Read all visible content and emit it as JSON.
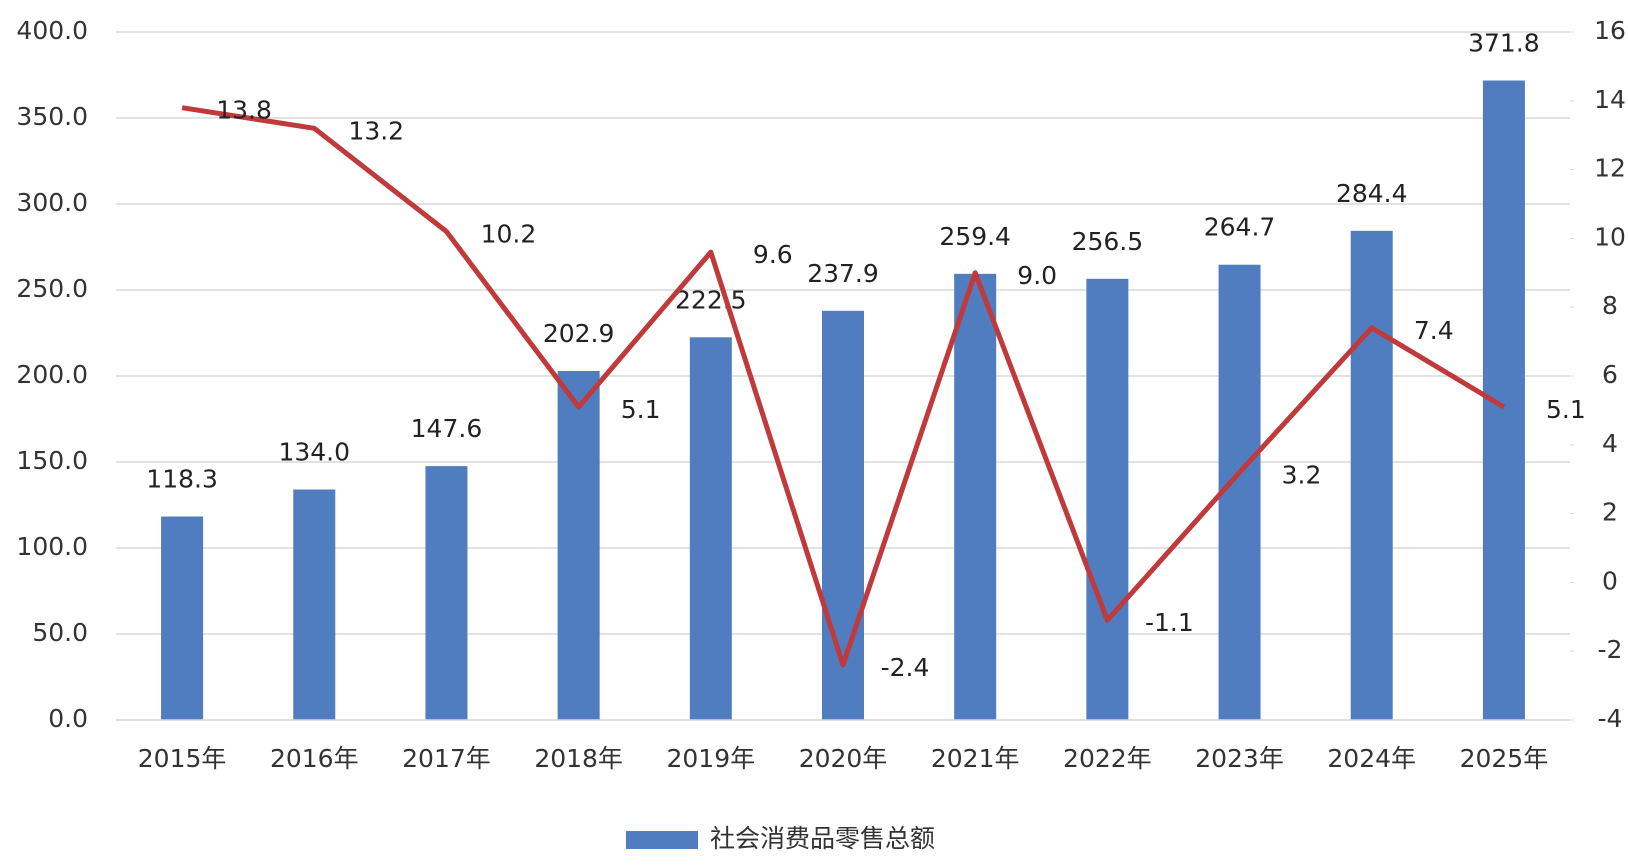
{
  "chart_data": {
    "type": "bar",
    "categories": [
      "2015年",
      "2016年",
      "2017年",
      "2018年",
      "2019年",
      "2020年",
      "2021年",
      "2022年",
      "2023年",
      "2024年",
      "2025年"
    ],
    "series": [
      {
        "name": "社会消费品零售总额",
        "type": "bar",
        "color": "#4f7dbf",
        "values": [
          118.3,
          134.0,
          147.6,
          202.9,
          222.5,
          237.9,
          259.4,
          256.5,
          264.7,
          284.4,
          371.8
        ],
        "value_labels": [
          "118.3",
          "134.0",
          "147.6",
          "202.9",
          "222.5",
          "237.9",
          "259.4",
          "256.5",
          "264.7",
          "284.4",
          "371.8"
        ]
      },
      {
        "type": "line",
        "axis": "y2",
        "color": "#c0393b",
        "values": [
          13.8,
          13.2,
          10.2,
          5.1,
          9.6,
          -2.4,
          9.0,
          -1.1,
          3.2,
          7.4,
          5.1
        ],
        "value_labels": [
          "13.8",
          "13.2",
          "10.2",
          "5.1",
          "9.6",
          "-2.4",
          "9.0",
          "-1.1",
          "3.2",
          "7.4",
          "5.1"
        ]
      }
    ],
    "ylim": [
      0,
      400
    ],
    "yticks": [
      {
        "value": 0,
        "label": "0.0"
      },
      {
        "value": 50,
        "label": "50.0"
      },
      {
        "value": 100,
        "label": "100.0"
      },
      {
        "value": 150,
        "label": "150.0"
      },
      {
        "value": 200,
        "label": "200.0"
      },
      {
        "value": 250,
        "label": "250.0"
      },
      {
        "value": 300,
        "label": "300.0"
      },
      {
        "value": 350,
        "label": "350.0"
      },
      {
        "value": 400,
        "label": "400.0"
      }
    ],
    "y2lim": [
      -4,
      16
    ],
    "y2ticks": [
      -4,
      -2,
      0,
      2,
      4,
      6,
      8,
      10,
      12,
      14,
      16
    ],
    "grid": true,
    "legend": "bottom"
  }
}
